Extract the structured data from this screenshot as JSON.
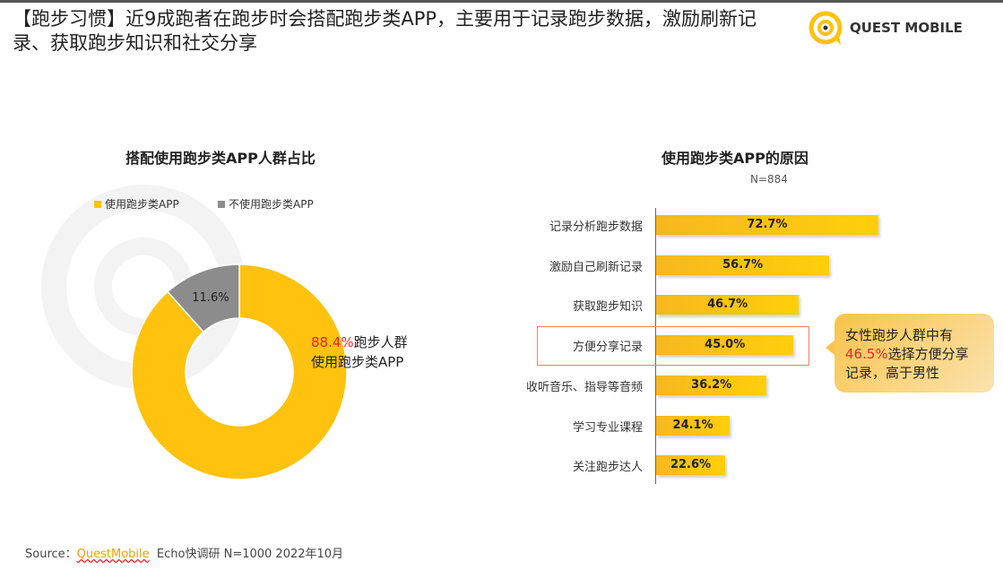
{
  "title": "【跑步习惯】近9成跑者在跑步时会搭配跑步类APP，主要用于记录跑步数据，激励刷新记录、获取跑步知识和社交分享",
  "logo": "QUEST MOBILE",
  "watermark": "QUEST MOBILE",
  "colors": {
    "accent": "#FFC20E",
    "gray": "#8C8C8C",
    "red": "#E8252A"
  },
  "chart_data": [
    {
      "type": "pie",
      "title": "搭配使用跑步类APP人群占比",
      "categories": [
        "使用跑步类APP",
        "不使用跑步类APP"
      ],
      "values": [
        88.4,
        11.6
      ],
      "labels": [
        "88.4%",
        "11.6%"
      ],
      "legend": "top-left",
      "annotation": {
        "value": "88.4%",
        "text1": "跑步人群",
        "text2": "使用跑步类APP"
      }
    },
    {
      "type": "bar",
      "title": "使用跑步类APP的原因",
      "subtitle": "N=884",
      "categories": [
        "记录分析跑步数据",
        "激励自己刷新记录",
        "获取跑步知识",
        "方便分享记录",
        "收听音乐、指导等音频",
        "学习专业课程",
        "关注跑步达人"
      ],
      "values": [
        72.7,
        56.7,
        46.7,
        45.0,
        36.2,
        24.1,
        22.6
      ],
      "labels": [
        "72.7%",
        "56.7%",
        "46.7%",
        "45.0%",
        "36.2%",
        "24.1%",
        "22.6%"
      ],
      "highlight": "方便分享记录"
    }
  ],
  "callout": {
    "line1": "女性跑步人群中有",
    "value": "46.5%",
    "line2": "选择方便分享",
    "line3": "记录，高于男性"
  },
  "source": {
    "prefix": "Source：",
    "brand": "QuestMobile",
    "rest": "Echo快调研 N=1000 2022年10月"
  }
}
